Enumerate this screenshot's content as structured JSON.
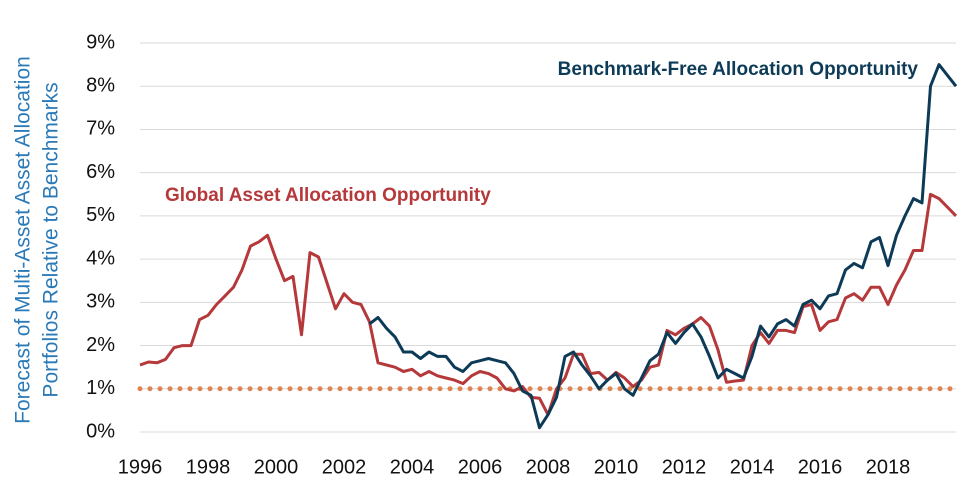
{
  "chart_data": {
    "type": "line",
    "y_label": [
      "Forecast of Multi-Asset Asset Allocation",
      "Portfolios Relative to Benchmarks"
    ],
    "annotations": [
      {
        "text": "Benchmark-Free  Allocation  Opportunity",
        "color": "#0d3b57"
      },
      {
        "text": "Global  Asset  Allocation  Opportunity",
        "color": "#b5383a"
      }
    ],
    "x": [
      1996,
      1996.25,
      1996.5,
      1996.75,
      1997,
      1997.25,
      1997.5,
      1997.75,
      1998,
      1998.25,
      1998.5,
      1998.75,
      1999,
      1999.25,
      1999.5,
      1999.75,
      2000,
      2000.25,
      2000.5,
      2000.75,
      2001,
      2001.25,
      2001.5,
      2001.75,
      2002,
      2002.25,
      2002.5,
      2002.75,
      2003,
      2003.25,
      2003.5,
      2003.75,
      2004,
      2004.25,
      2004.5,
      2004.75,
      2005,
      2005.25,
      2005.5,
      2005.75,
      2006,
      2006.25,
      2006.5,
      2006.75,
      2007,
      2007.25,
      2007.5,
      2007.75,
      2008,
      2008.25,
      2008.5,
      2008.75,
      2009,
      2009.25,
      2009.5,
      2009.75,
      2010,
      2010.25,
      2010.5,
      2010.75,
      2011,
      2011.25,
      2011.5,
      2011.75,
      2012,
      2012.25,
      2012.5,
      2012.75,
      2013,
      2013.25,
      2013.5,
      2013.75,
      2014,
      2014.25,
      2014.5,
      2014.75,
      2015,
      2015.25,
      2015.5,
      2015.75,
      2016,
      2016.25,
      2016.5,
      2016.75,
      2017,
      2017.25,
      2017.5,
      2017.75,
      2018,
      2018.25,
      2018.5,
      2018.75,
      2019,
      2019.25,
      2019.5,
      2019.75,
      2020
    ],
    "series": [
      {
        "name": "Global Asset Allocation Opportunity",
        "color": "#b5383a",
        "values": [
          1.55,
          1.62,
          1.6,
          1.68,
          1.95,
          2.0,
          2.0,
          2.6,
          2.7,
          2.95,
          3.15,
          3.35,
          3.75,
          4.3,
          4.4,
          4.55,
          4.0,
          3.5,
          3.6,
          2.25,
          4.15,
          4.05,
          3.45,
          2.85,
          3.2,
          3.0,
          2.95,
          2.55,
          1.6,
          1.55,
          1.5,
          1.4,
          1.45,
          1.3,
          1.4,
          1.3,
          1.25,
          1.2,
          1.12,
          1.3,
          1.4,
          1.35,
          1.25,
          1.0,
          0.95,
          1.05,
          0.8,
          0.78,
          0.4,
          1.0,
          1.25,
          1.8,
          1.8,
          1.35,
          1.38,
          1.2,
          1.38,
          1.25,
          1.05,
          1.2,
          1.5,
          1.55,
          2.35,
          2.25,
          2.4,
          2.5,
          2.65,
          2.45,
          1.9,
          1.15,
          1.18,
          1.2,
          2.0,
          2.3,
          2.05,
          2.35,
          2.35,
          2.3,
          2.9,
          2.95,
          2.35,
          2.55,
          2.6,
          3.1,
          3.2,
          3.05,
          3.35,
          3.35,
          2.95,
          3.4,
          3.75,
          4.2,
          4.2,
          5.5,
          5.4,
          5.2,
          5.0
        ]
      },
      {
        "name": "Benchmark-Free Allocation Opportunity",
        "color": "#0d3b57",
        "values": [
          null,
          null,
          null,
          null,
          null,
          null,
          null,
          null,
          null,
          null,
          null,
          null,
          null,
          null,
          null,
          null,
          null,
          null,
          null,
          null,
          null,
          null,
          null,
          null,
          null,
          null,
          null,
          2.5,
          2.65,
          2.4,
          2.2,
          1.85,
          1.85,
          1.7,
          1.85,
          1.75,
          1.75,
          1.5,
          1.4,
          1.6,
          1.65,
          1.7,
          1.65,
          1.6,
          1.35,
          0.95,
          0.85,
          0.1,
          0.4,
          0.8,
          1.75,
          1.85,
          1.55,
          1.3,
          1.0,
          1.2,
          1.35,
          1.0,
          0.85,
          1.25,
          1.65,
          1.8,
          2.3,
          2.05,
          2.3,
          2.5,
          2.2,
          1.75,
          1.25,
          1.45,
          1.35,
          1.25,
          1.75,
          2.45,
          2.2,
          2.5,
          2.6,
          2.45,
          2.95,
          3.05,
          2.85,
          3.15,
          3.2,
          3.75,
          3.9,
          3.8,
          4.4,
          4.5,
          3.85,
          4.55,
          5.0,
          5.4,
          5.3,
          8.0,
          8.5,
          8.25,
          8.0
        ]
      }
    ],
    "reference_line": {
      "value": 1,
      "color": "#e0834f",
      "style": "dotted"
    },
    "xlim": [
      1996,
      2020
    ],
    "xticks": [
      1996,
      1998,
      2000,
      2002,
      2004,
      2006,
      2008,
      2010,
      2012,
      2014,
      2016,
      2018
    ],
    "ylim": [
      0,
      9
    ],
    "yticks": [
      {
        "value": 0,
        "label": "0%"
      },
      {
        "value": 1,
        "label": "1%"
      },
      {
        "value": 2,
        "label": "2%"
      },
      {
        "value": 3,
        "label": "3%"
      },
      {
        "value": 4,
        "label": "4%"
      },
      {
        "value": 5,
        "label": "5%"
      },
      {
        "value": 6,
        "label": "6%"
      },
      {
        "value": 7,
        "label": "7%"
      },
      {
        "value": 8,
        "label": "8%"
      },
      {
        "value": 9,
        "label": "9%"
      }
    ],
    "grid": true
  }
}
